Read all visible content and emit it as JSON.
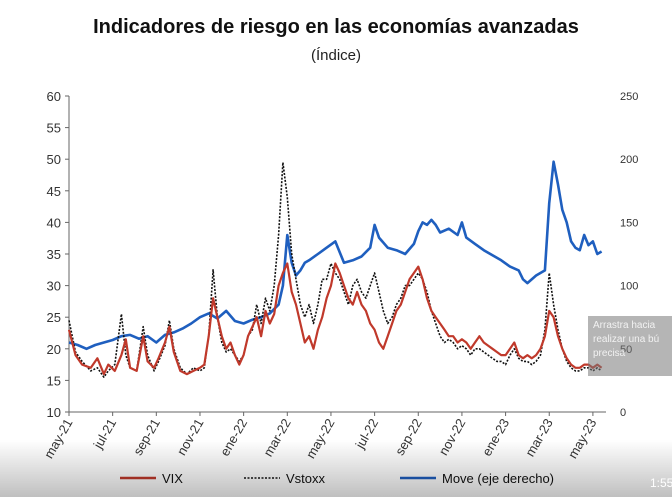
{
  "chart_data": {
    "type": "line",
    "title": "Indicadores de riesgo en las economías avanzadas",
    "subtitle": "(Índice)",
    "y_left": {
      "min": 10,
      "max": 60,
      "ticks": [
        "10",
        "15",
        "20",
        "25",
        "30",
        "35",
        "40",
        "45",
        "50",
        "55",
        "60"
      ]
    },
    "y_right": {
      "min": 0,
      "max": 250,
      "ticks": [
        "0",
        "50",
        "100",
        "150",
        "200",
        "250"
      ]
    },
    "x_ticks": [
      {
        "label": "may-21",
        "t": 0
      },
      {
        "label": "jul-21",
        "t": 2
      },
      {
        "label": "sep-21",
        "t": 4
      },
      {
        "label": "nov-21",
        "t": 6
      },
      {
        "label": "ene-22",
        "t": 8
      },
      {
        "label": "mar-22",
        "t": 10
      },
      {
        "label": "may-22",
        "t": 12
      },
      {
        "label": "jul-22",
        "t": 14
      },
      {
        "label": "sep-22",
        "t": 16
      },
      {
        "label": "nov-22",
        "t": 18
      },
      {
        "label": "ene-23",
        "t": 20
      },
      {
        "label": "mar-23",
        "t": 22
      },
      {
        "label": "may-23",
        "t": 24
      }
    ],
    "x_range": [
      0,
      24.6
    ],
    "legend_position": "bottom",
    "series": [
      {
        "name": "VIX",
        "axis": "left",
        "color": "#c0392b",
        "points": [
          [
            0,
            23
          ],
          [
            0.3,
            19
          ],
          [
            0.6,
            17.5
          ],
          [
            1,
            17
          ],
          [
            1.3,
            18.5
          ],
          [
            1.6,
            16
          ],
          [
            1.8,
            17.5
          ],
          [
            2.1,
            16.5
          ],
          [
            2.4,
            19
          ],
          [
            2.6,
            21.5
          ],
          [
            2.8,
            17
          ],
          [
            3.1,
            16.5
          ],
          [
            3.4,
            22
          ],
          [
            3.6,
            18
          ],
          [
            3.9,
            17
          ],
          [
            4.1,
            18.5
          ],
          [
            4.4,
            21
          ],
          [
            4.6,
            23.5
          ],
          [
            4.8,
            19.5
          ],
          [
            5.1,
            16.5
          ],
          [
            5.4,
            16
          ],
          [
            5.7,
            16.5
          ],
          [
            6,
            17
          ],
          [
            6.2,
            17.5
          ],
          [
            6.4,
            22
          ],
          [
            6.6,
            28
          ],
          [
            6.8,
            25
          ],
          [
            7,
            22
          ],
          [
            7.2,
            20
          ],
          [
            7.4,
            21
          ],
          [
            7.6,
            19
          ],
          [
            7.8,
            17.5
          ],
          [
            8,
            19
          ],
          [
            8.2,
            22
          ],
          [
            8.4,
            23.5
          ],
          [
            8.6,
            25
          ],
          [
            8.8,
            22
          ],
          [
            9,
            26
          ],
          [
            9.2,
            24
          ],
          [
            9.4,
            25.5
          ],
          [
            9.6,
            30
          ],
          [
            9.8,
            32
          ],
          [
            10,
            33.5
          ],
          [
            10.2,
            29
          ],
          [
            10.4,
            27
          ],
          [
            10.6,
            24
          ],
          [
            10.8,
            21
          ],
          [
            11,
            22
          ],
          [
            11.2,
            20
          ],
          [
            11.4,
            23
          ],
          [
            11.6,
            25
          ],
          [
            11.8,
            28
          ],
          [
            12,
            30
          ],
          [
            12.2,
            33.5
          ],
          [
            12.4,
            32
          ],
          [
            12.6,
            30
          ],
          [
            12.8,
            28
          ],
          [
            13,
            27
          ],
          [
            13.2,
            29
          ],
          [
            13.4,
            27
          ],
          [
            13.6,
            26
          ],
          [
            13.8,
            24
          ],
          [
            14,
            23
          ],
          [
            14.2,
            21
          ],
          [
            14.4,
            20
          ],
          [
            14.6,
            22
          ],
          [
            14.8,
            24
          ],
          [
            15,
            26
          ],
          [
            15.2,
            27
          ],
          [
            15.4,
            29
          ],
          [
            15.6,
            31
          ],
          [
            15.8,
            32
          ],
          [
            16,
            33
          ],
          [
            16.2,
            31
          ],
          [
            16.4,
            28
          ],
          [
            16.6,
            26
          ],
          [
            16.8,
            25
          ],
          [
            17,
            24
          ],
          [
            17.2,
            23
          ],
          [
            17.4,
            22
          ],
          [
            17.6,
            22
          ],
          [
            17.8,
            21
          ],
          [
            18,
            21.5
          ],
          [
            18.2,
            21
          ],
          [
            18.4,
            20
          ],
          [
            18.6,
            21
          ],
          [
            18.8,
            22
          ],
          [
            19,
            21
          ],
          [
            19.2,
            20.5
          ],
          [
            19.4,
            20
          ],
          [
            19.6,
            19.5
          ],
          [
            19.8,
            19
          ],
          [
            20,
            19
          ],
          [
            20.2,
            20
          ],
          [
            20.4,
            21
          ],
          [
            20.6,
            19
          ],
          [
            20.8,
            18.5
          ],
          [
            21,
            19
          ],
          [
            21.2,
            18.5
          ],
          [
            21.4,
            19
          ],
          [
            21.6,
            20
          ],
          [
            21.8,
            22
          ],
          [
            22,
            26
          ],
          [
            22.2,
            25
          ],
          [
            22.4,
            22
          ],
          [
            22.6,
            20
          ],
          [
            22.8,
            18.5
          ],
          [
            23,
            17.5
          ],
          [
            23.2,
            17
          ],
          [
            23.4,
            17
          ],
          [
            23.6,
            17.5
          ],
          [
            23.8,
            17.5
          ],
          [
            24,
            17
          ],
          [
            24.2,
            17.5
          ],
          [
            24.4,
            17
          ]
        ]
      },
      {
        "name": "Vstoxx",
        "axis": "left",
        "color": "#111111",
        "points": [
          [
            0,
            24.5
          ],
          [
            0.3,
            19.5
          ],
          [
            0.6,
            18
          ],
          [
            1,
            16.5
          ],
          [
            1.3,
            17
          ],
          [
            1.6,
            15.5
          ],
          [
            1.8,
            16.5
          ],
          [
            2.1,
            17.5
          ],
          [
            2.4,
            25.5
          ],
          [
            2.6,
            19
          ],
          [
            2.8,
            17
          ],
          [
            3.1,
            16.5
          ],
          [
            3.4,
            23.5
          ],
          [
            3.6,
            19
          ],
          [
            3.9,
            16.5
          ],
          [
            4.1,
            18
          ],
          [
            4.4,
            20.5
          ],
          [
            4.6,
            24.5
          ],
          [
            4.8,
            20
          ],
          [
            5.1,
            17
          ],
          [
            5.4,
            16
          ],
          [
            5.7,
            17
          ],
          [
            6,
            16.5
          ],
          [
            6.2,
            17
          ],
          [
            6.4,
            22
          ],
          [
            6.6,
            32.5
          ],
          [
            6.8,
            25
          ],
          [
            7,
            21
          ],
          [
            7.2,
            19.5
          ],
          [
            7.4,
            20
          ],
          [
            7.6,
            19
          ],
          [
            7.8,
            18
          ],
          [
            8,
            19
          ],
          [
            8.2,
            22
          ],
          [
            8.4,
            23
          ],
          [
            8.6,
            27
          ],
          [
            8.8,
            24
          ],
          [
            9,
            28
          ],
          [
            9.2,
            26
          ],
          [
            9.4,
            30
          ],
          [
            9.6,
            38
          ],
          [
            9.8,
            49.5
          ],
          [
            10,
            44
          ],
          [
            10.2,
            35
          ],
          [
            10.4,
            31
          ],
          [
            10.6,
            27
          ],
          [
            10.8,
            25
          ],
          [
            11,
            27
          ],
          [
            11.2,
            24
          ],
          [
            11.4,
            27
          ],
          [
            11.6,
            31
          ],
          [
            11.8,
            31
          ],
          [
            12,
            33.5
          ],
          [
            12.2,
            32
          ],
          [
            12.4,
            31
          ],
          [
            12.6,
            29
          ],
          [
            12.8,
            27
          ],
          [
            13,
            30
          ],
          [
            13.2,
            31
          ],
          [
            13.4,
            29
          ],
          [
            13.6,
            28
          ],
          [
            13.8,
            30
          ],
          [
            14,
            32
          ],
          [
            14.2,
            29
          ],
          [
            14.4,
            26
          ],
          [
            14.6,
            24
          ],
          [
            14.8,
            25
          ],
          [
            15,
            27
          ],
          [
            15.2,
            28
          ],
          [
            15.4,
            30
          ],
          [
            15.6,
            30
          ],
          [
            15.8,
            31
          ],
          [
            16,
            32
          ],
          [
            16.2,
            31
          ],
          [
            16.4,
            29
          ],
          [
            16.6,
            26
          ],
          [
            16.8,
            24
          ],
          [
            17,
            22
          ],
          [
            17.2,
            21
          ],
          [
            17.4,
            21.5
          ],
          [
            17.6,
            21
          ],
          [
            17.8,
            20
          ],
          [
            18,
            20.5
          ],
          [
            18.2,
            20
          ],
          [
            18.4,
            19
          ],
          [
            18.6,
            20
          ],
          [
            18.8,
            20
          ],
          [
            19,
            19.5
          ],
          [
            19.2,
            19
          ],
          [
            19.4,
            18.5
          ],
          [
            19.6,
            18
          ],
          [
            19.8,
            18
          ],
          [
            20,
            17.5
          ],
          [
            20.2,
            19
          ],
          [
            20.4,
            20
          ],
          [
            20.6,
            18.5
          ],
          [
            20.8,
            18
          ],
          [
            21,
            18
          ],
          [
            21.2,
            17.5
          ],
          [
            21.4,
            18
          ],
          [
            21.6,
            19
          ],
          [
            21.8,
            23
          ],
          [
            22,
            32
          ],
          [
            22.2,
            27
          ],
          [
            22.4,
            23
          ],
          [
            22.6,
            20
          ],
          [
            22.8,
            18
          ],
          [
            23,
            17
          ],
          [
            23.2,
            16.5
          ],
          [
            23.4,
            16.5
          ],
          [
            23.6,
            17
          ],
          [
            23.8,
            17
          ],
          [
            24,
            16.5
          ],
          [
            24.2,
            17
          ],
          [
            24.4,
            16.5
          ]
        ]
      },
      {
        "name": "Move (eje derecho)",
        "axis": "right",
        "color": "#1f5fbf",
        "points": [
          [
            0,
            55
          ],
          [
            0.4,
            53
          ],
          [
            0.8,
            50
          ],
          [
            1.2,
            53
          ],
          [
            1.6,
            55
          ],
          [
            2,
            57
          ],
          [
            2.4,
            60
          ],
          [
            2.8,
            61
          ],
          [
            3.2,
            58
          ],
          [
            3.6,
            60
          ],
          [
            4,
            55
          ],
          [
            4.4,
            61
          ],
          [
            4.8,
            63
          ],
          [
            5.2,
            66
          ],
          [
            5.6,
            70
          ],
          [
            6,
            75
          ],
          [
            6.4,
            78
          ],
          [
            6.8,
            74
          ],
          [
            7.2,
            80
          ],
          [
            7.6,
            72
          ],
          [
            8,
            70
          ],
          [
            8.4,
            73
          ],
          [
            8.8,
            75
          ],
          [
            9.2,
            78
          ],
          [
            9.6,
            85
          ],
          [
            9.8,
            100
          ],
          [
            10,
            140
          ],
          [
            10.2,
            118
          ],
          [
            10.4,
            108
          ],
          [
            10.6,
            112
          ],
          [
            10.8,
            118
          ],
          [
            11,
            120
          ],
          [
            11.4,
            125
          ],
          [
            11.8,
            130
          ],
          [
            12.2,
            135
          ],
          [
            12.6,
            118
          ],
          [
            13,
            120
          ],
          [
            13.4,
            123
          ],
          [
            13.8,
            130
          ],
          [
            14,
            148
          ],
          [
            14.2,
            138
          ],
          [
            14.6,
            130
          ],
          [
            15,
            128
          ],
          [
            15.4,
            125
          ],
          [
            15.8,
            133
          ],
          [
            16,
            143
          ],
          [
            16.2,
            150
          ],
          [
            16.4,
            148
          ],
          [
            16.6,
            152
          ],
          [
            16.8,
            148
          ],
          [
            17,
            142
          ],
          [
            17.4,
            145
          ],
          [
            17.8,
            140
          ],
          [
            18,
            150
          ],
          [
            18.2,
            138
          ],
          [
            18.6,
            133
          ],
          [
            19,
            128
          ],
          [
            19.4,
            124
          ],
          [
            19.8,
            120
          ],
          [
            20.2,
            115
          ],
          [
            20.6,
            112
          ],
          [
            20.8,
            105
          ],
          [
            21,
            102
          ],
          [
            21.4,
            108
          ],
          [
            21.8,
            112
          ],
          [
            22,
            165
          ],
          [
            22.2,
            198
          ],
          [
            22.4,
            180
          ],
          [
            22.6,
            160
          ],
          [
            22.8,
            150
          ],
          [
            23,
            135
          ],
          [
            23.2,
            130
          ],
          [
            23.4,
            128
          ],
          [
            23.6,
            140
          ],
          [
            23.8,
            132
          ],
          [
            24,
            135
          ],
          [
            24.2,
            125
          ],
          [
            24.4,
            127
          ]
        ]
      }
    ]
  },
  "overlay": {
    "tooltip_lines": [
      "Arrastra hacia",
      "realizar una bú",
      "precisa"
    ],
    "video_time": "1:55"
  }
}
